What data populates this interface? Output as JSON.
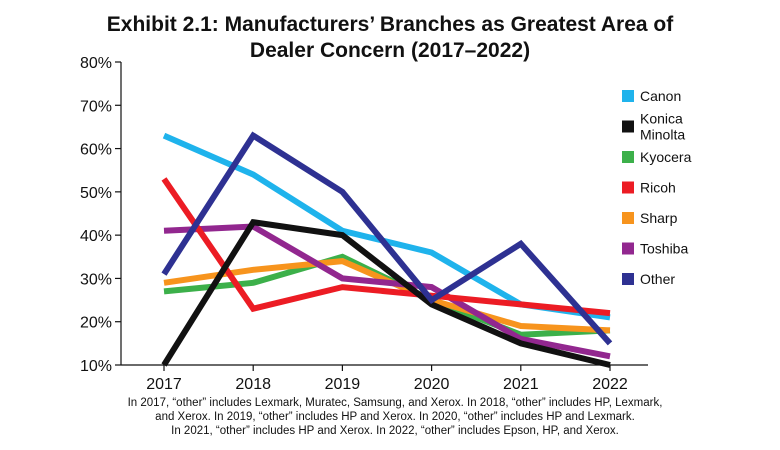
{
  "chart_data": {
    "type": "line",
    "title": "Exhibit 2.1: Manufacturers’ Branches as Greatest Area of Dealer Concern (2017–2022)",
    "title_lines": [
      "Exhibit 2.1: Manufacturers’ Branches as Greatest Area of",
      "Dealer Concern (2017–2022)"
    ],
    "xlabel": "",
    "ylabel": "",
    "categories": [
      "2017",
      "2018",
      "2019",
      "2020",
      "2021",
      "2022"
    ],
    "y_ticks": [
      "10%",
      "20%",
      "30%",
      "40%",
      "50%",
      "60%",
      "70%",
      "80%"
    ],
    "ylim": [
      10,
      80
    ],
    "grid": false,
    "legend_position": "right",
    "series": [
      {
        "name": "Canon",
        "color": "#1fb3ec",
        "values": [
          63,
          54,
          41,
          36,
          24,
          21
        ]
      },
      {
        "name": "Konica Minolta",
        "color": "#111111",
        "values": [
          10,
          43,
          40,
          24,
          15,
          10
        ]
      },
      {
        "name": "Kyocera",
        "color": "#3cb04a",
        "values": [
          27,
          29,
          35,
          25,
          17,
          18
        ]
      },
      {
        "name": "Ricoh",
        "color": "#ec1c24",
        "values": [
          53,
          23,
          28,
          26,
          24,
          22
        ]
      },
      {
        "name": "Sharp",
        "color": "#f7941d",
        "values": [
          29,
          32,
          34,
          25,
          19,
          18
        ]
      },
      {
        "name": "Toshiba",
        "color": "#92278f",
        "values": [
          41,
          42,
          30,
          28,
          16,
          12
        ]
      },
      {
        "name": "Other",
        "color": "#2e3192",
        "values": [
          31,
          63,
          50,
          25,
          38,
          15
        ]
      }
    ],
    "draw_order": [
      "Canon",
      "Kyocera",
      "Sharp",
      "Toshiba",
      "Ricoh",
      "Konica Minolta",
      "Other"
    ],
    "footnote": [
      "In 2017, “other” includes Lexmark, Muratec, Samsung, and Xerox. In 2018, “other” includes HP, Lexmark,",
      "and Xerox. In 2019, “other” includes HP and Xerox. In 2020, “other” includes HP and Lexmark.",
      "In 2021, “other” includes HP and Xerox. In 2022, “other” includes Epson, HP, and Xerox."
    ]
  }
}
